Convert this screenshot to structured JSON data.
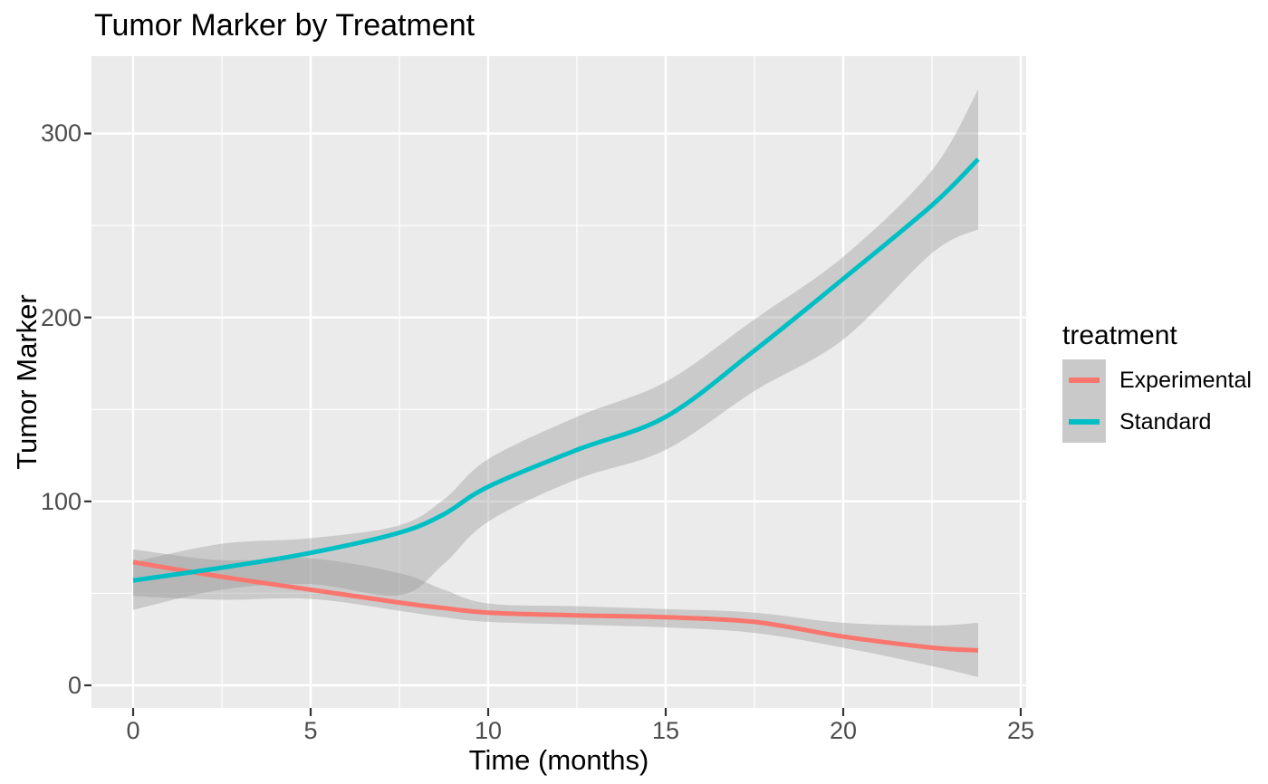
{
  "figure": {
    "background": "#FFFFFF",
    "panel_background": "#EBEBEB",
    "grid_color": "#FFFFFF",
    "tick_mark_color": "#333333",
    "tick_label_color": "#4D4D4D",
    "legend_key_fill": "#C9C9C9"
  },
  "chart_data": {
    "type": "line",
    "title": "Tumor Marker by Treatment",
    "xlabel": "Time (months)",
    "ylabel": "Tumor Marker",
    "x_ticks": [
      0,
      5,
      10,
      15,
      20,
      25
    ],
    "x_minor_ticks": [
      2.5,
      7.5,
      12.5,
      17.5,
      22.5
    ],
    "y_ticks": [
      0,
      100,
      200,
      300
    ],
    "y_minor_ticks": [
      50,
      150,
      250
    ],
    "xlim": [
      -1.2,
      25.2
    ],
    "ylim": [
      -12,
      342
    ],
    "grid": true,
    "has_ci_ribbon": true,
    "ribbon_color": "#999999",
    "ribbon_opacity": 0.4,
    "legend": {
      "title": "treatment",
      "position": "right"
    },
    "x": [
      0,
      2.5,
      5,
      7.5,
      8.75,
      10,
      12.5,
      15,
      17.5,
      20,
      22.5,
      23.8
    ],
    "series": [
      {
        "name": "Experimental",
        "color": "#F8766D",
        "values": [
          67,
          59,
          52,
          45,
          42,
          39.5,
          38,
          37,
          34.5,
          26.5,
          20.5,
          19
        ],
        "ci_upper": [
          74,
          68,
          69,
          61,
          52,
          44.5,
          43,
          41.5,
          39.5,
          34,
          32.5,
          34
        ],
        "ci_lower": [
          48.5,
          46.5,
          47,
          40.5,
          37,
          34.5,
          33,
          31.5,
          28.5,
          20.5,
          10.5,
          4.5
        ]
      },
      {
        "name": "Standard",
        "color": "#00BFC4",
        "values": [
          57,
          64,
          72,
          83,
          93,
          108,
          128,
          146,
          182,
          221,
          261,
          286
        ],
        "ci_upper": [
          67,
          77,
          80,
          87,
          101,
          123,
          146,
          165,
          199,
          233,
          280,
          324
        ],
        "ci_lower": [
          41,
          52,
          55,
          49,
          66,
          89,
          112,
          128,
          160,
          188,
          235,
          248
        ]
      }
    ]
  }
}
